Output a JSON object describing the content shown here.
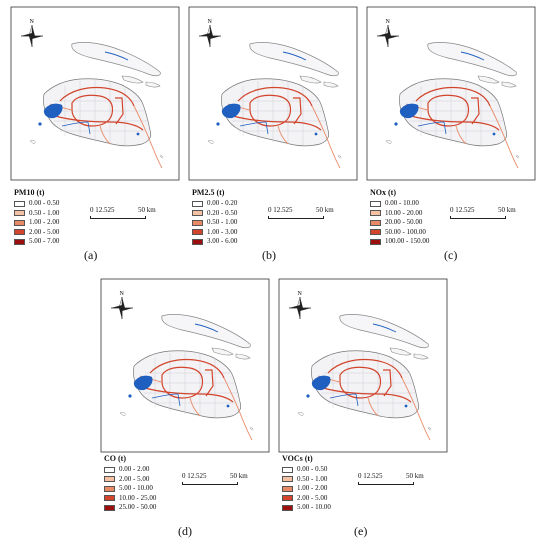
{
  "panels": [
    {
      "id": "a",
      "caption": "(a)",
      "legend_title": "PM10  (t)",
      "legend": [
        "0.00 - 0.50",
        "0.50 - 1.00",
        "1.00 - 2.00",
        "2.00 - 5.00",
        "5.00 - 7.00"
      ],
      "scale_labels": [
        "0 12.525",
        "50 km"
      ]
    },
    {
      "id": "b",
      "caption": "(b)",
      "legend_title": "PM2.5  (t)",
      "legend": [
        "0.00 - 0.20",
        "0.20 - 0.50",
        "0.50 - 1.00",
        "1.00 - 3.00",
        "3.00 - 6.00"
      ],
      "scale_labels": [
        "0 12.525",
        "50 km"
      ]
    },
    {
      "id": "c",
      "caption": "(c)",
      "legend_title": "NOx  (t)",
      "legend": [
        "0.00 - 10.00",
        "10.00 - 20.00",
        "20.00 - 50.00",
        "50.00 - 100.00",
        "100.00 - 150.00"
      ],
      "scale_labels": [
        "0 12.525",
        "50 km"
      ]
    },
    {
      "id": "d",
      "caption": "(d)",
      "legend_title": "CO  (t)",
      "legend": [
        "0.00 - 2.00",
        "2.00 - 5.00",
        "5.00 - 10.00",
        "10.00 - 25.00",
        "25.00 - 50.00"
      ],
      "scale_labels": [
        "0 12.525",
        "50 km"
      ]
    },
    {
      "id": "e",
      "caption": "(e)",
      "legend_title": "VOCs  (t)",
      "legend": [
        "0.00 - 0.50",
        "0.50 - 1.00",
        "1.00 - 2.00",
        "2.00 - 5.00",
        "5.00 - 10.00"
      ],
      "scale_labels": [
        "0 12.525",
        "50 km"
      ]
    }
  ],
  "north_label": "N",
  "legend_colors": [
    "#ffffff",
    "#f4c1a4",
    "#e98a66",
    "#d2452c",
    "#9b0f0f"
  ],
  "water_color": "#1f5fbf"
}
